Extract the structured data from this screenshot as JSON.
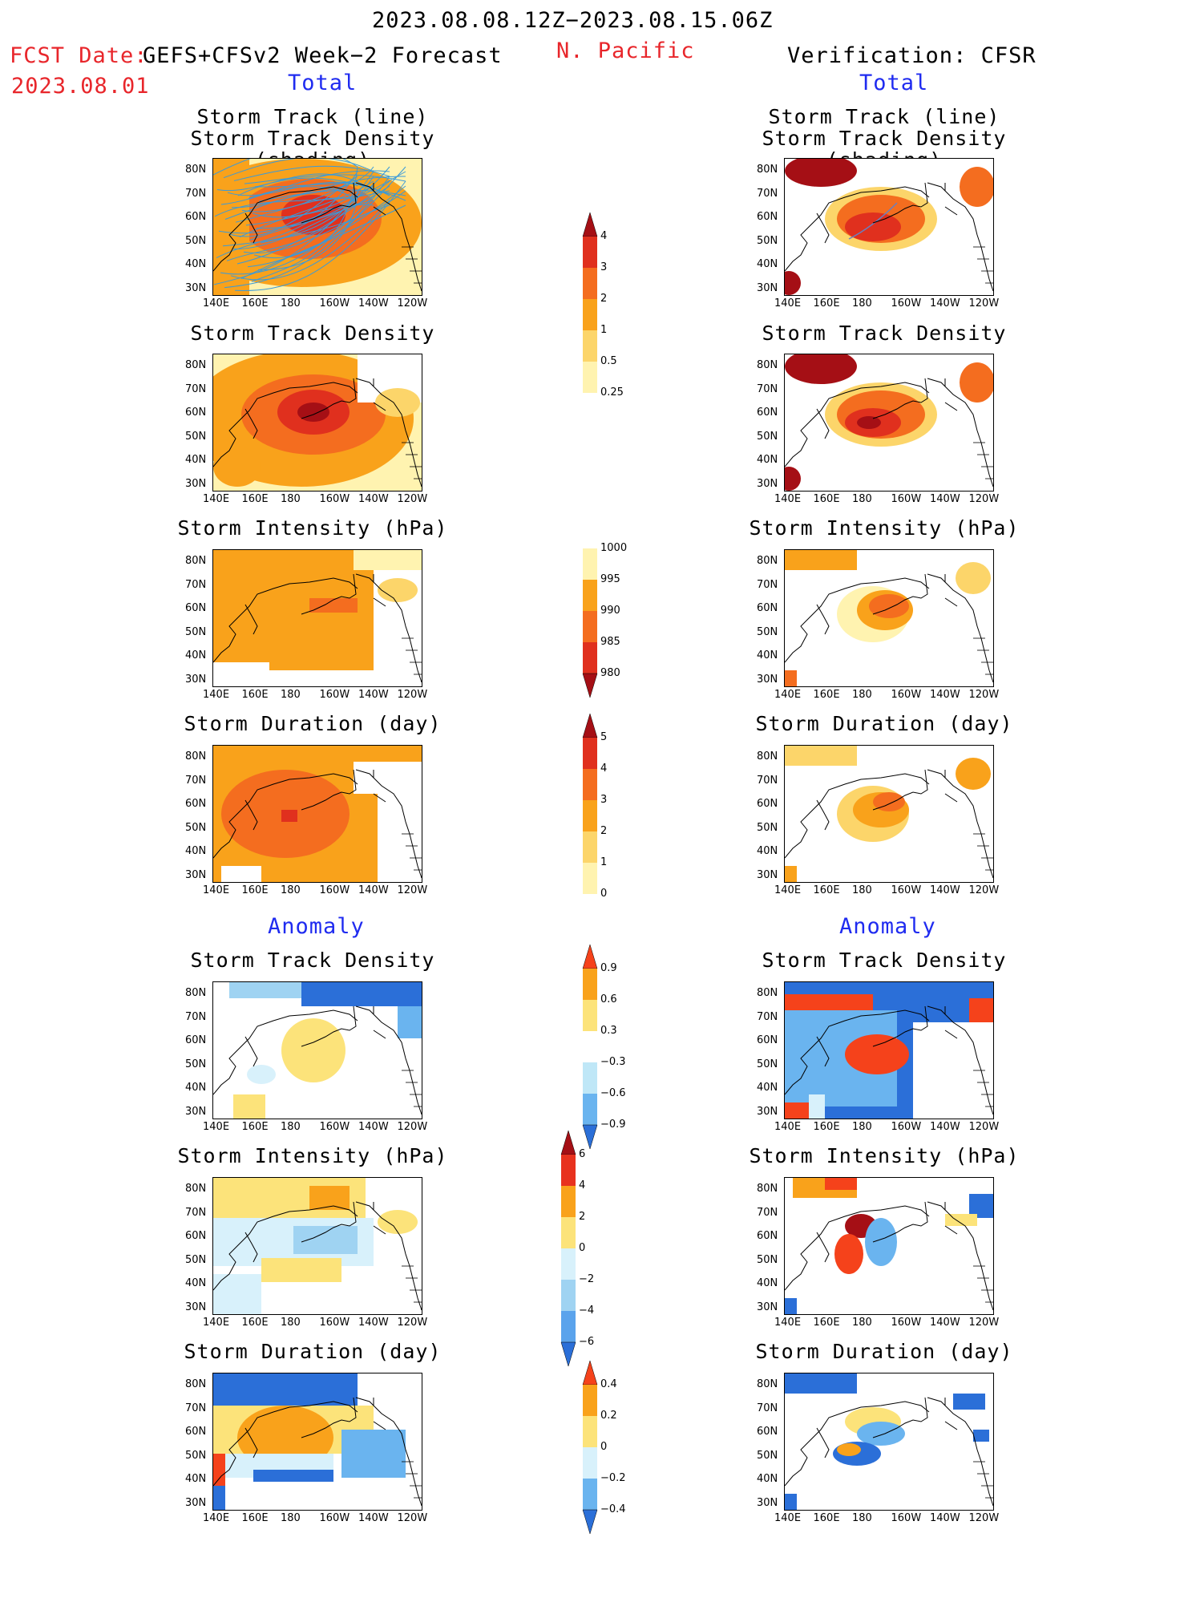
{
  "header": {
    "date_range": "2023.08.08.12Z−2023.08.15.06Z",
    "fcst_label": "FCST Date:",
    "fcst_model": "GEFS+CFSv2 Week−2 Forecast",
    "fcst_date": "2023.08.01",
    "region": "N. Pacific",
    "verification": "Verification: CFSR",
    "total_left": "Total",
    "total_right": "Total",
    "anomaly_left": "Anomaly",
    "anomaly_right": "Anomaly"
  },
  "axes": {
    "lat_ticks": [
      "80N",
      "70N",
      "60N",
      "50N",
      "40N",
      "30N"
    ],
    "lon_ticks": [
      "140E",
      "160E",
      "180",
      "160W",
      "140W",
      "120W"
    ]
  },
  "panels": {
    "row1_title_a": "Storm Track (line)",
    "row1_title_b": "Storm Track Density (shading)",
    "row2_title": "Storm Track Density",
    "row3_title": "Storm Intensity (hPa)",
    "row4_title": "Storm Duration (day)",
    "row5_title": "Storm Track Density",
    "row6_title": "Storm Intensity (hPa)",
    "row7_title": "Storm Duration (day)"
  },
  "colorbars": {
    "density": {
      "labels": [
        "4",
        "3",
        "2",
        "1",
        "0.5",
        "0.25"
      ],
      "colors": [
        "#a50f15",
        "#e0301e",
        "#f46d1f",
        "#f9a21b",
        "#fcd56a",
        "#fff3b0"
      ]
    },
    "intensity": {
      "labels": [
        "1000",
        "995",
        "990",
        "985",
        "980"
      ],
      "colors": [
        "#fff3b0",
        "#f9a21b",
        "#f46d1f",
        "#e0301e",
        "#a50f15"
      ]
    },
    "duration": {
      "labels": [
        "5",
        "4",
        "3",
        "2",
        "1",
        "0"
      ],
      "colors": [
        "#a50f15",
        "#e0301e",
        "#f46d1f",
        "#f9a21b",
        "#fcd56a",
        "#fff3b0"
      ]
    },
    "anom_density": {
      "labels": [
        "0.9",
        "0.6",
        "0.3",
        "−0.3",
        "−0.6",
        "−0.9"
      ],
      "colors": [
        "#f5421b",
        "#f9a21b",
        "#fce37a",
        "#ffffff",
        "#bfe7f7",
        "#6ab4ef",
        "#2b6fd8"
      ]
    },
    "anom_intensity": {
      "labels": [
        "6",
        "4",
        "2",
        "0",
        "−2",
        "−4",
        "−6"
      ],
      "colors": [
        "#a50f15",
        "#e8321e",
        "#f9a21b",
        "#fce37a",
        "#d8f1fb",
        "#9fd3f2",
        "#5aa3ec",
        "#2b6fd8"
      ]
    },
    "anom_duration": {
      "labels": [
        "0.4",
        "0.2",
        "0",
        "−0.2",
        "−0.4"
      ],
      "colors": [
        "#f5421b",
        "#f9a21b",
        "#fce37a",
        "#d8f1fb",
        "#6ab4ef",
        "#2b6fd8"
      ]
    }
  },
  "colors": {
    "red_text": "#e8262b",
    "blue_text": "#1f2bf0",
    "track_line": "#3a9ad9"
  }
}
